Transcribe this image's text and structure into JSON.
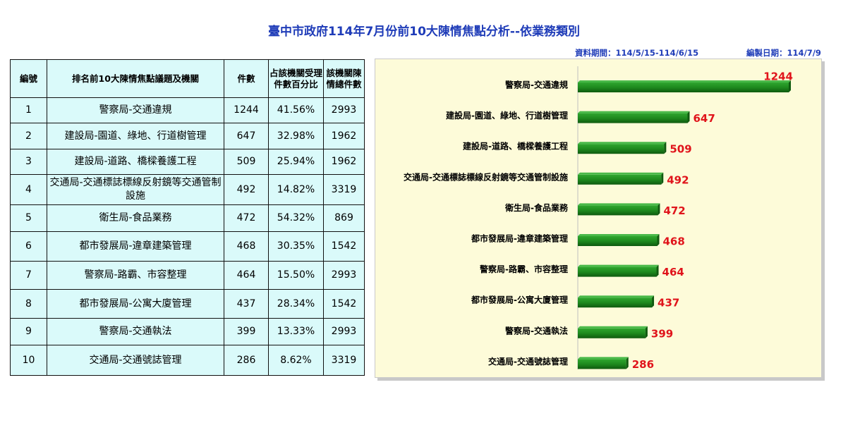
{
  "title": "臺中市政府114年7月份前10大陳情焦點分析--依業務類別",
  "meta": {
    "period": "資料期間：114/5/15-114/6/15",
    "made_date": "編製日期：114/7/9"
  },
  "table": {
    "headers": [
      "編號",
      "排名前10大陳情焦點議題及機關",
      "件數",
      "占該機關受理件數百分比",
      "該機關陳情總件數"
    ],
    "rows": [
      {
        "no": "1",
        "issue": "警察局-交通違規",
        "count": "1244",
        "pct": "41.56%",
        "total": "2993"
      },
      {
        "no": "2",
        "issue": "建設局-園道、綠地、行道樹管理",
        "count": "647",
        "pct": "32.98%",
        "total": "1962"
      },
      {
        "no": "3",
        "issue": "建設局-道路、橋樑養護工程",
        "count": "509",
        "pct": "25.94%",
        "total": "1962"
      },
      {
        "no": "4",
        "issue": "交通局-交通標誌標線反射鏡等交通管制設施",
        "count": "492",
        "pct": "14.82%",
        "total": "3319"
      },
      {
        "no": "5",
        "issue": "衛生局-食品業務",
        "count": "472",
        "pct": "54.32%",
        "total": "869"
      },
      {
        "no": "6",
        "issue": "都市發展局-違章建築管理",
        "count": "468",
        "pct": "30.35%",
        "total": "1542"
      },
      {
        "no": "7",
        "issue": "警察局-路霸、市容整理",
        "count": "464",
        "pct": "15.50%",
        "total": "2993"
      },
      {
        "no": "8",
        "issue": "都市發展局-公寓大廈管理",
        "count": "437",
        "pct": "28.34%",
        "total": "1542"
      },
      {
        "no": "9",
        "issue": "警察局-交通執法",
        "count": "399",
        "pct": "13.33%",
        "total": "2993"
      },
      {
        "no": "10",
        "issue": "交通局-交通號誌管理",
        "count": "286",
        "pct": "8.62%",
        "total": "3319"
      }
    ]
  },
  "chart_data": {
    "type": "bar",
    "orientation": "horizontal",
    "categories": [
      "警察局-交通違規",
      "建設局-園道、綠地、行道樹管理",
      "建設局-道路、橋樑養護工程",
      "交通局-交通標誌標線反射鏡等交通管制設施",
      "衛生局-食品業務",
      "都市發展局-違章建築管理",
      "警察局-路霸、市容整理",
      "都市發展局-公寓大廈管理",
      "警察局-交通執法",
      "交通局-交通號誌管理"
    ],
    "values": [
      1244,
      647,
      509,
      492,
      472,
      468,
      464,
      437,
      399,
      286
    ],
    "xlim": [
      0,
      1300
    ],
    "grid": false,
    "legend": "none",
    "colors": {
      "bar": "#1e8a1e",
      "bar_dark": "#0f5a0f",
      "value_label": "#e0141b",
      "panel_bg": "#fdfbd9"
    }
  }
}
